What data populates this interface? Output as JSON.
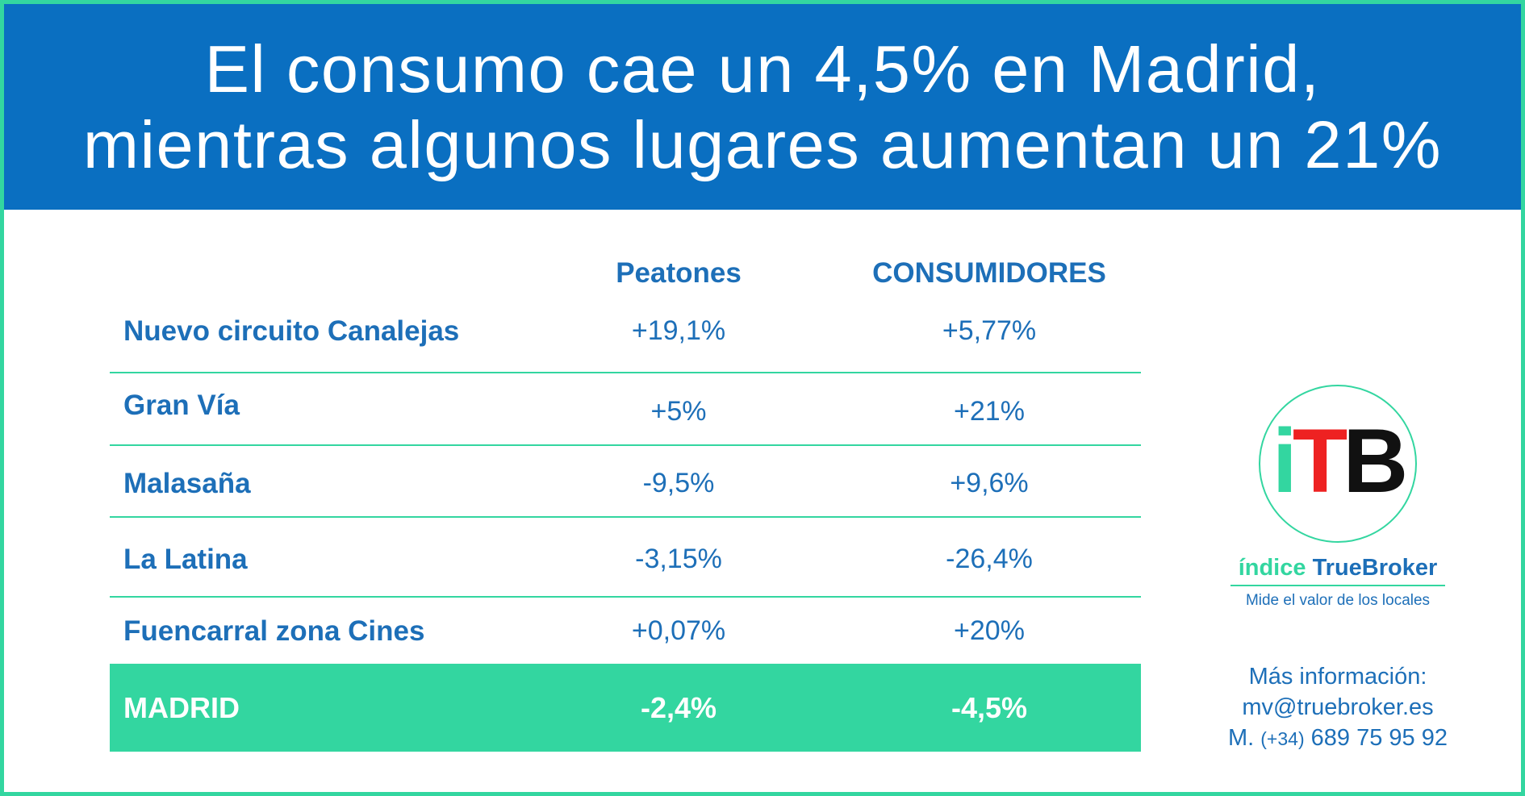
{
  "header": {
    "line1": "El consumo cae un 4,5% en Madrid,",
    "line2": "mientras algunos lugares aumentan un 21%"
  },
  "table": {
    "columns": [
      "Peatones",
      "CONSUMIDORES"
    ],
    "rows": [
      {
        "place": "Nuevo circuito Canalejas",
        "peatones": "+19,1%",
        "consumidores": "+5,77%"
      },
      {
        "place": "Gran Vía",
        "peatones": "+5%",
        "consumidores": "+21%"
      },
      {
        "place": "Malasaña",
        "peatones": "-9,5%",
        "consumidores": "+9,6%"
      },
      {
        "place": "La Latina",
        "peatones": "-3,15%",
        "consumidores": "-26,4%"
      },
      {
        "place": "Fuencarral zona Cines",
        "peatones": "+0,07%",
        "consumidores": "+20%"
      }
    ],
    "total": {
      "place": "MADRID",
      "peatones": "-2,4%",
      "consumidores": "-4,5%"
    }
  },
  "logo": {
    "letter_i": "i",
    "letter_t": "T",
    "letter_b": "B",
    "brand_part1": "índice",
    "brand_part2": "TrueBroker",
    "tagline": "Mide el valor de los locales"
  },
  "contact": {
    "label": "Más información:",
    "email": "mv@truebroker.es",
    "phone_prefix": "M.",
    "phone_code": "(+34)",
    "phone_number": "689 75 95 92"
  },
  "colors": {
    "header_blue": "#0a6fc1",
    "text_blue": "#1d6fb8",
    "accent_green": "#33d6a0",
    "logo_red": "#ee2222",
    "logo_black": "#111111"
  }
}
